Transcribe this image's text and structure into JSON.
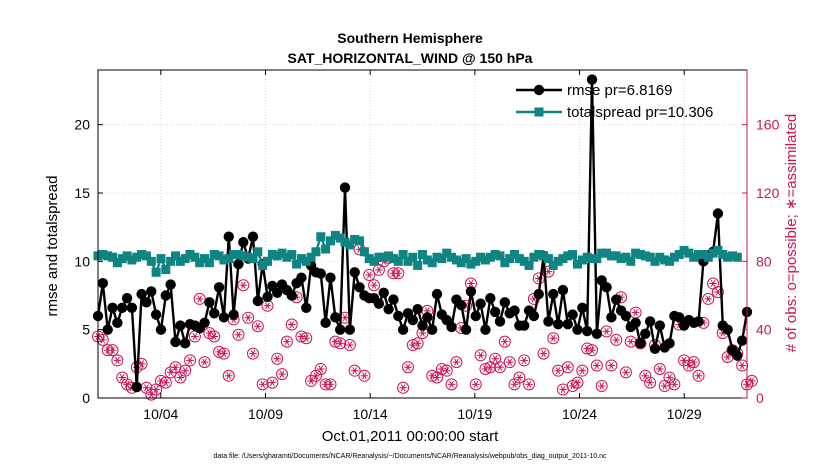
{
  "chart_data": {
    "type": "line",
    "title": "Southern Hemisphere",
    "subtitle": "SAT_HORIZONTAL_WIND @ 150 hPa",
    "xlabel": "Oct.01,2011 00:00:00 start",
    "ylabel": "rmse and totalspread",
    "y2label": "# of obs: o=possible; ∗=assimilated",
    "footer": "data file: /Users/gharamti/Documents/NCAR/Reanalysis/~/Documents/NCAR/Reanalysis/webpub/obs_diag_output_2011-10.nc",
    "xlim": [
      1,
      32
    ],
    "ylim": [
      0,
      24
    ],
    "y2lim": [
      0,
      192
    ],
    "x_ticks": [
      4,
      9,
      14,
      19,
      24,
      29
    ],
    "x_tick_labels": [
      "10/04",
      "10/09",
      "10/14",
      "10/19",
      "10/24",
      "10/29"
    ],
    "y_ticks": [
      0,
      5,
      10,
      15,
      20
    ],
    "y2_ticks": [
      0,
      40,
      80,
      120,
      160
    ],
    "grid": true,
    "legend_position": "top-right",
    "colors": {
      "rmse": "#000000",
      "totalspread": "#0e8583",
      "obs": "#cc1458",
      "right_axis": "#cc1458"
    },
    "series": [
      {
        "name": "rmse pr=6.8169",
        "marker": "circle",
        "values": [
          6.0,
          8.4,
          5.0,
          6.6,
          5.5,
          6.6,
          7.3,
          6.6,
          0.8,
          7.6,
          7.0,
          7.8,
          6.1,
          5.0,
          7.5,
          8.3,
          4.1,
          5.3,
          4.0,
          5.4,
          5.3,
          5.1,
          5.5,
          7.0,
          6.2,
          8.1,
          5.9,
          11.8,
          6.1,
          9.8,
          11.4,
          10.2,
          11.8,
          7.1,
          9.8,
          7.4,
          8.2,
          7.7,
          8.3,
          7.9,
          7.5,
          8.4,
          8.8,
          6.6,
          9.7,
          9.2,
          9.1,
          5.5,
          8.8,
          5.9,
          5.0,
          15.4,
          5.0,
          9.2,
          8.1,
          7.5,
          7.3,
          7.3,
          6.9,
          7.7,
          6.5,
          7.2,
          6.0,
          5.0,
          6.2,
          5.7,
          6.5,
          5.3,
          5.9,
          5.0,
          7.6,
          6.1,
          5.7,
          5.2,
          7.2,
          6.8,
          5.0,
          7.8,
          6.0,
          6.9,
          5.0,
          7.3,
          6.3,
          5.6,
          7.0,
          6.2,
          6.4,
          5.3,
          5.3,
          6.4,
          6.0,
          7.6,
          10.4,
          5.6,
          7.6,
          5.4,
          7.9,
          5.4,
          6.1,
          5.0,
          6.6,
          4.9,
          23.3,
          4.7,
          8.6,
          8.1,
          5.9,
          7.2,
          6.4,
          6.0,
          5.2,
          5.5,
          4.0,
          4.7,
          5.6,
          3.6,
          5.3,
          3.7,
          4.0,
          6.0,
          5.9,
          5.3,
          5.7,
          5.5,
          5.6,
          10.0,
          10.4,
          10.7,
          13.5,
          5.3,
          5.0,
          3.5,
          3.1,
          4.2,
          6.3
        ]
      },
      {
        "name": "totalspread pr=10.306",
        "marker": "square",
        "values": [
          10.4,
          10.5,
          10.4,
          10.3,
          9.9,
          10.2,
          10.4,
          10.1,
          10.3,
          10.5,
          10.4,
          10.0,
          9.2,
          10.2,
          9.4,
          10.0,
          10.4,
          10.0,
          10.2,
          10.5,
          10.3,
          9.9,
          10.2,
          9.9,
          10.5,
          10.4,
          10.1,
          10.2,
          10.5,
          10.5,
          10.4,
          10.3,
          10.2,
          10.7,
          9.7,
          10.0,
          10.5,
          10.4,
          10.6,
          10.3,
          10.5,
          9.8,
          10.2,
          10.0,
          10.3,
          10.7,
          11.8,
          10.9,
          11.5,
          11.9,
          11.7,
          11.4,
          11.2,
          11.6,
          11.5,
          10.7,
          10.2,
          10.0,
          10.3,
          10.3,
          10.4,
          10.2,
          10.0,
          10.5,
          10.0,
          10.3,
          9.7,
          10.5,
          10.1,
          9.9,
          10.3,
          10.2,
          10.6,
          10.3,
          10.1,
          9.9,
          10.2,
          9.8,
          10.0,
          10.3,
          10.1,
          10.3,
          10.5,
          10.4,
          9.9,
          10.2,
          10.5,
          10.2,
          10.0,
          9.7,
          10.3,
          10.5,
          10.4,
          10.2,
          9.7,
          10.0,
          10.2,
          10.4,
          10.5,
          9.8,
          10.1,
          10.3,
          10.2,
          10.2,
          10.6,
          10.6,
          10.4,
          10.4,
          10.2,
          10.3,
          10.0,
          10.6,
          10.5,
          10.4,
          10.3,
          10.0,
          10.3,
          10.1,
          10.0,
          10.3,
          10.5,
          10.8,
          10.6,
          10.3,
          10.5,
          10.5,
          10.3,
          10.6,
          10.8,
          10.5,
          10.3,
          10.4,
          10.3
        ]
      },
      {
        "name": "possible",
        "axis": "right",
        "marker": "circle-open",
        "values": [
          36,
          34,
          28,
          28,
          22,
          12,
          8,
          6,
          18,
          20,
          6,
          2,
          5,
          10,
          9,
          15,
          18,
          12,
          16,
          22,
          36,
          58,
          21,
          38,
          36,
          27,
          26,
          13,
          46,
          37,
          66,
          47,
          26,
          42,
          8,
          54,
          9,
          23,
          14,
          33,
          43,
          59,
          36,
          35,
          10,
          13,
          17,
          8,
          8,
          33,
          32,
          47,
          31,
          16,
          87,
          13,
          72,
          66,
          75,
          80,
          82,
          73,
          73,
          6,
          18,
          31,
          32,
          38,
          51,
          13,
          12,
          17,
          16,
          8,
          21,
          41,
          54,
          67,
          8,
          25,
          17,
          18,
          23,
          18,
          33,
          21,
          8,
          12,
          22,
          8,
          58,
          70,
          26,
          74,
          35,
          16,
          5,
          18,
          7,
          9,
          16,
          29,
          28,
          19,
          7,
          39,
          19,
          34,
          59,
          15,
          33,
          50,
          32,
          13,
          9,
          31,
          17,
          7,
          12,
          8,
          43,
          22,
          19,
          21,
          13,
          44,
          58,
          67,
          62,
          38,
          24,
          28,
          26,
          19,
          8,
          10
        ]
      },
      {
        "name": "assimilated",
        "axis": "right",
        "marker": "asterisk",
        "values": [
          36,
          34,
          28,
          28,
          22,
          12,
          8,
          6,
          18,
          20,
          6,
          2,
          5,
          10,
          9,
          15,
          18,
          12,
          16,
          22,
          36,
          58,
          21,
          38,
          36,
          27,
          26,
          13,
          46,
          37,
          66,
          47,
          26,
          42,
          8,
          54,
          9,
          23,
          14,
          33,
          43,
          59,
          36,
          35,
          10,
          13,
          17,
          8,
          8,
          33,
          32,
          47,
          31,
          16,
          87,
          13,
          72,
          66,
          75,
          80,
          82,
          73,
          73,
          6,
          18,
          31,
          32,
          38,
          51,
          13,
          12,
          17,
          16,
          8,
          21,
          41,
          54,
          67,
          8,
          25,
          17,
          18,
          23,
          18,
          33,
          21,
          8,
          12,
          22,
          8,
          58,
          70,
          26,
          74,
          35,
          16,
          5,
          18,
          7,
          9,
          16,
          29,
          28,
          19,
          7,
          39,
          19,
          34,
          59,
          15,
          33,
          50,
          32,
          13,
          9,
          31,
          17,
          7,
          12,
          8,
          43,
          22,
          19,
          21,
          13,
          44,
          58,
          67,
          62,
          38,
          24,
          28,
          26,
          19,
          8,
          10
        ]
      }
    ]
  }
}
